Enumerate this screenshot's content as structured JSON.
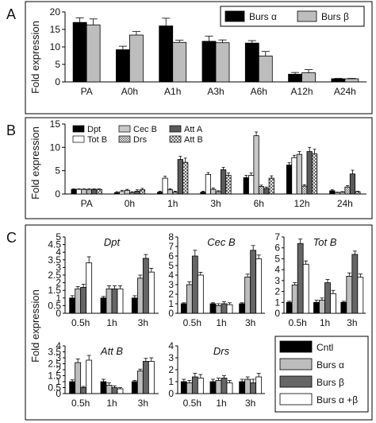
{
  "colors": {
    "black": "#000000",
    "lightgray": "#bdbdbd",
    "white": "#ffffff",
    "darkgray": "#666666",
    "cecb": "#c8c8c8",
    "atta": "#5a5a5a"
  },
  "panel_labels": [
    "A",
    "B",
    "C"
  ],
  "chart_data": [
    {
      "id": "A",
      "type": "bar",
      "ylabel": "Fold expression",
      "ylim": [
        0,
        20
      ],
      "yticks": [
        0,
        5,
        10,
        15,
        20
      ],
      "categories": [
        "PA",
        "A0h",
        "A1h",
        "A3h",
        "A6h",
        "A12h",
        "A24h"
      ],
      "series": [
        {
          "name": "Burs α",
          "color": "black",
          "values": [
            17,
            9.2,
            16,
            11.6,
            11.1,
            2.2,
            0.9
          ],
          "errors": [
            1.3,
            1.0,
            2.2,
            1.5,
            0.7,
            0.5,
            0.1
          ]
        },
        {
          "name": "Burs β",
          "color": "lightgray",
          "values": [
            16.3,
            13.4,
            11.3,
            11.2,
            7.4,
            2.6,
            0.9
          ],
          "errors": [
            1.7,
            1.0,
            0.6,
            0.8,
            1.3,
            0.9,
            0.1
          ]
        }
      ],
      "legend": "top-right"
    },
    {
      "id": "B",
      "type": "bar",
      "ylabel": "Fold expression",
      "ylim": [
        0,
        15
      ],
      "yticks": [
        0,
        5,
        10,
        15
      ],
      "categories": [
        "PA",
        "0h",
        "1h",
        "3h",
        "6h",
        "12h",
        "24h"
      ],
      "series": [
        {
          "name": "Dpt",
          "color": "black",
          "values": [
            1,
            0.3,
            0.4,
            0.4,
            3.5,
            6.2,
            0.7
          ],
          "errors": [
            0.1,
            0.2,
            0.2,
            0.2,
            0.5,
            0.5,
            0.2
          ]
        },
        {
          "name": "Tot B",
          "color": "white",
          "values": [
            1,
            0.5,
            3.4,
            4.2,
            4.0,
            7.8,
            0.3
          ],
          "errors": [
            0.1,
            0.3,
            0.4,
            0.4,
            0.5,
            0.5,
            0.1
          ]
        },
        {
          "name": "Cec B",
          "color": "cecb",
          "values": [
            1,
            0.8,
            0.9,
            1.0,
            12.5,
            8.5,
            0.4
          ],
          "errors": [
            0.1,
            0.2,
            0.2,
            0.3,
            0.8,
            0.6,
            0.1
          ]
        },
        {
          "name": "Drs",
          "color": "hatch-grid",
          "values": [
            1,
            0.3,
            0.4,
            0.5,
            1.6,
            1.7,
            1.5
          ],
          "errors": [
            0.1,
            0.2,
            0.2,
            0.2,
            0.3,
            0.3,
            0.3
          ]
        },
        {
          "name": "Att A",
          "color": "atta",
          "values": [
            1,
            0.6,
            7.4,
            5.2,
            1.2,
            9.1,
            4.3
          ],
          "errors": [
            0.1,
            0.3,
            0.7,
            0.5,
            0.3,
            0.9,
            0.8
          ]
        },
        {
          "name": "Att B",
          "color": "hatch-diamond",
          "values": [
            1,
            0.9,
            6.8,
            4.0,
            3.4,
            8.6,
            0.5
          ],
          "errors": [
            0.1,
            0.3,
            0.9,
            0.5,
            0.5,
            1.0,
            0.1
          ]
        }
      ],
      "legend": "top-left"
    },
    {
      "id": "C",
      "type": "bar",
      "ylabel": "Fold expression",
      "categories": [
        "0.5h",
        "1h",
        "3h"
      ],
      "legend": "bottom-right",
      "legend_series": [
        {
          "name": "Cntl",
          "color": "black"
        },
        {
          "name": "Burs α",
          "color": "lightgray"
        },
        {
          "name": "Burs β",
          "color": "darkgray"
        },
        {
          "name": "Burs α +β",
          "color": "white"
        }
      ],
      "subplots": [
        {
          "title": "Dpt",
          "ylim": [
            0,
            5
          ],
          "yticks": [
            0,
            0.5,
            1,
            1.5,
            2,
            2.5,
            3,
            3.5,
            4,
            4.5,
            5
          ],
          "values": [
            [
              1,
              1.6,
              1.7,
              3.3
            ],
            [
              1,
              1.6,
              1.6,
              1.6
            ],
            [
              1,
              2.3,
              3.6,
              2.7
            ]
          ],
          "errors": [
            [
              0.15,
              0.15,
              0.2,
              0.4
            ],
            [
              0.1,
              0.2,
              0.2,
              0.2
            ],
            [
              0.15,
              0.2,
              0.25,
              0.25
            ]
          ]
        },
        {
          "title": "Cec B",
          "ylim": [
            0,
            8
          ],
          "yticks": [
            0,
            1,
            2,
            3,
            4,
            5,
            6,
            7,
            8
          ],
          "values": [
            [
              1,
              3.0,
              6.0,
              4.0
            ],
            [
              1,
              0.8,
              1.0,
              0.9
            ],
            [
              1,
              3.8,
              6.6,
              5.7
            ]
          ],
          "errors": [
            [
              0.1,
              0.3,
              0.6,
              0.3
            ],
            [
              0.1,
              0.2,
              0.2,
              0.2
            ],
            [
              0.1,
              0.3,
              0.5,
              0.4
            ]
          ]
        },
        {
          "title": "Tot B",
          "ylim": [
            0,
            7
          ],
          "yticks": [
            0,
            1,
            2,
            3,
            4,
            5,
            6,
            7
          ],
          "values": [
            [
              1,
              2.6,
              6.4,
              4.5
            ],
            [
              1,
              1.2,
              2.8,
              1.8
            ],
            [
              1,
              3.4,
              5.4,
              3.3
            ]
          ],
          "errors": [
            [
              0.1,
              0.2,
              0.4,
              0.3
            ],
            [
              0.2,
              0.2,
              0.3,
              0.3
            ],
            [
              0.1,
              0.3,
              0.3,
              0.3
            ]
          ]
        },
        {
          "title": "Att B",
          "ylim": [
            0,
            4
          ],
          "yticks": [
            0,
            0.5,
            1,
            1.5,
            2,
            2.5,
            3,
            3.5,
            4
          ],
          "values": [
            [
              1,
              2.6,
              0.5,
              2.8
            ],
            [
              1,
              0.7,
              0.5,
              0.4
            ],
            [
              1,
              1.9,
              2.7,
              2.7
            ]
          ],
          "errors": [
            [
              0.15,
              0.3,
              0.1,
              0.4
            ],
            [
              0.2,
              0.2,
              0.15,
              0.1
            ],
            [
              0.1,
              0.15,
              0.25,
              0.3
            ]
          ]
        },
        {
          "title": "Drs",
          "ylim": [
            0,
            4
          ],
          "yticks": [
            0,
            1,
            2,
            3,
            4
          ],
          "values": [
            [
              1,
              0.9,
              1.4,
              1.3
            ],
            [
              1,
              1.1,
              1.3,
              0.9
            ],
            [
              1,
              1.2,
              0.9,
              1.4
            ]
          ],
          "errors": [
            [
              0.2,
              0.2,
              0.3,
              0.3
            ],
            [
              0.2,
              0.2,
              0.2,
              0.2
            ],
            [
              0.2,
              0.2,
              0.3,
              0.3
            ]
          ]
        }
      ]
    }
  ]
}
